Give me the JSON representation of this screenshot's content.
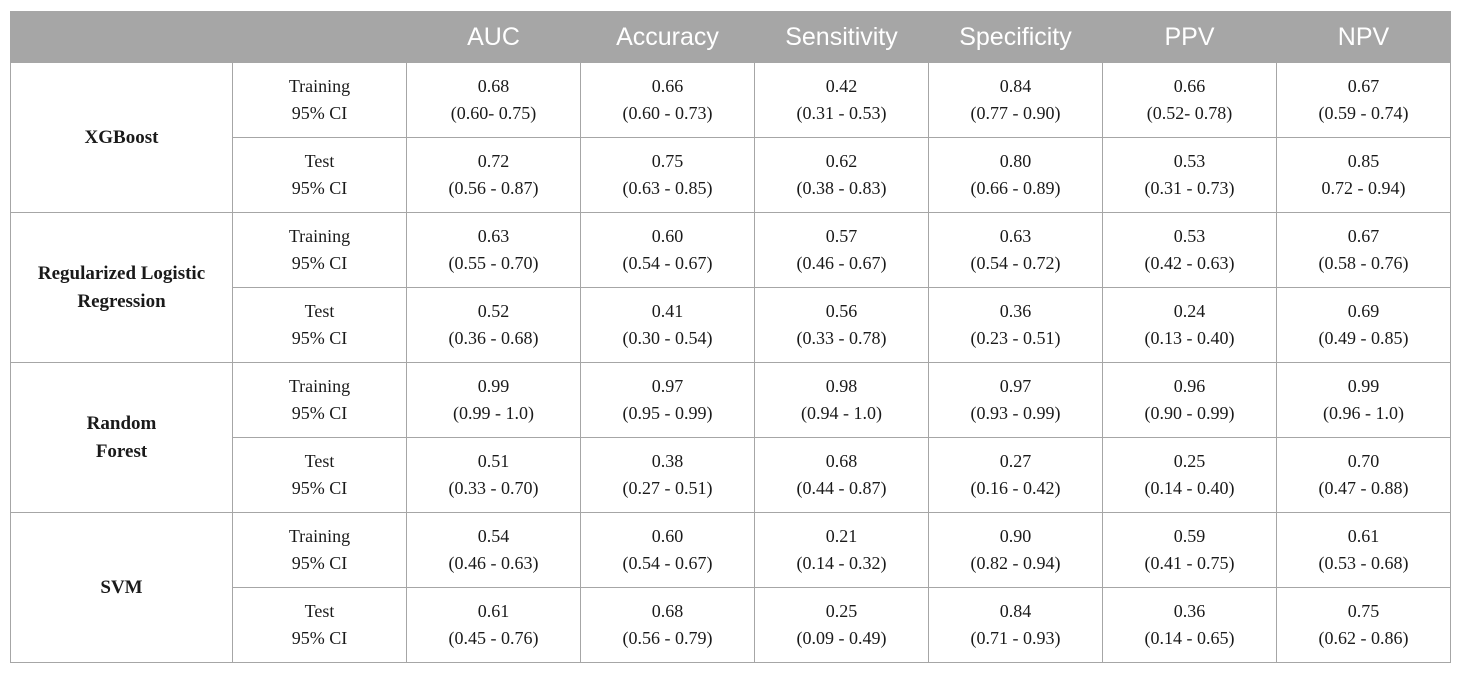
{
  "header": {
    "blank1": "",
    "blank2": "",
    "metrics": [
      "AUC",
      "Accuracy",
      "Sensitivity",
      "Specificity",
      "PPV",
      "NPV"
    ]
  },
  "rows": [
    {
      "model_lines": [
        "XGBoost"
      ],
      "splits": [
        {
          "label": "Training",
          "ci_label": "95% CI",
          "cells": [
            {
              "value": "0.68",
              "ci": "(0.60- 0.75)"
            },
            {
              "value": "0.66",
              "ci": "(0.60 - 0.73)"
            },
            {
              "value": "0.42",
              "ci": "(0.31 - 0.53)"
            },
            {
              "value": "0.84",
              "ci": "(0.77 - 0.90)"
            },
            {
              "value": "0.66",
              "ci": "(0.52- 0.78)"
            },
            {
              "value": "0.67",
              "ci": "(0.59 - 0.74)"
            }
          ]
        },
        {
          "label": "Test",
          "ci_label": "95% CI",
          "cells": [
            {
              "value": "0.72",
              "ci": "(0.56 - 0.87)"
            },
            {
              "value": "0.75",
              "ci": "(0.63 - 0.85)"
            },
            {
              "value": "0.62",
              "ci": "(0.38 - 0.83)"
            },
            {
              "value": "0.80",
              "ci": "(0.66 - 0.89)"
            },
            {
              "value": "0.53",
              "ci": "(0.31 - 0.73)"
            },
            {
              "value": "0.85",
              "ci": "0.72 - 0.94)"
            }
          ]
        }
      ]
    },
    {
      "model_lines": [
        "Regularized Logistic",
        "Regression"
      ],
      "splits": [
        {
          "label": "Training",
          "ci_label": "95% CI",
          "cells": [
            {
              "value": "0.63",
              "ci": "(0.55 - 0.70)"
            },
            {
              "value": "0.60",
              "ci": "(0.54 - 0.67)"
            },
            {
              "value": "0.57",
              "ci": "(0.46 - 0.67)"
            },
            {
              "value": "0.63",
              "ci": "(0.54 - 0.72)"
            },
            {
              "value": "0.53",
              "ci": "(0.42 - 0.63)"
            },
            {
              "value": "0.67",
              "ci": "(0.58 - 0.76)"
            }
          ]
        },
        {
          "label": "Test",
          "ci_label": "95% CI",
          "cells": [
            {
              "value": "0.52",
              "ci": "(0.36 - 0.68)"
            },
            {
              "value": "0.41",
              "ci": "(0.30 - 0.54)"
            },
            {
              "value": "0.56",
              "ci": "(0.33 - 0.78)"
            },
            {
              "value": "0.36",
              "ci": "(0.23 - 0.51)"
            },
            {
              "value": "0.24",
              "ci": "(0.13 - 0.40)"
            },
            {
              "value": "0.69",
              "ci": "(0.49 - 0.85)"
            }
          ]
        }
      ]
    },
    {
      "model_lines": [
        "Random",
        "Forest"
      ],
      "splits": [
        {
          "label": "Training",
          "ci_label": "95% CI",
          "cells": [
            {
              "value": "0.99",
              "ci": "(0.99 - 1.0)"
            },
            {
              "value": "0.97",
              "ci": "(0.95 - 0.99)"
            },
            {
              "value": "0.98",
              "ci": "(0.94 - 1.0)"
            },
            {
              "value": "0.97",
              "ci": "(0.93 - 0.99)"
            },
            {
              "value": "0.96",
              "ci": "(0.90 - 0.99)"
            },
            {
              "value": "0.99",
              "ci": "(0.96 - 1.0)"
            }
          ]
        },
        {
          "label": "Test",
          "ci_label": "95% CI",
          "cells": [
            {
              "value": "0.51",
              "ci": "(0.33 - 0.70)"
            },
            {
              "value": "0.38",
              "ci": "(0.27 - 0.51)"
            },
            {
              "value": "0.68",
              "ci": "(0.44 - 0.87)"
            },
            {
              "value": "0.27",
              "ci": "(0.16 - 0.42)"
            },
            {
              "value": "0.25",
              "ci": "(0.14 - 0.40)"
            },
            {
              "value": "0.70",
              "ci": "(0.47 - 0.88)"
            }
          ]
        }
      ]
    },
    {
      "model_lines": [
        "SVM"
      ],
      "splits": [
        {
          "label": "Training",
          "ci_label": "95% CI",
          "cells": [
            {
              "value": "0.54",
              "ci": "(0.46 - 0.63)"
            },
            {
              "value": "0.60",
              "ci": "(0.54 - 0.67)"
            },
            {
              "value": "0.21",
              "ci": "(0.14 - 0.32)"
            },
            {
              "value": "0.90",
              "ci": "(0.82 - 0.94)"
            },
            {
              "value": "0.59",
              "ci": "(0.41 - 0.75)"
            },
            {
              "value": "0.61",
              "ci": "(0.53 - 0.68)"
            }
          ]
        },
        {
          "label": "Test",
          "ci_label": "95% CI",
          "cells": [
            {
              "value": "0.61",
              "ci": "(0.45 - 0.76)"
            },
            {
              "value": "0.68",
              "ci": "(0.56 - 0.79)"
            },
            {
              "value": "0.25",
              "ci": "(0.09 - 0.49)"
            },
            {
              "value": "0.84",
              "ci": "(0.71 - 0.93)"
            },
            {
              "value": "0.36",
              "ci": "(0.14 - 0.65)"
            },
            {
              "value": "0.75",
              "ci": "(0.62 - 0.86)"
            }
          ]
        }
      ]
    }
  ]
}
